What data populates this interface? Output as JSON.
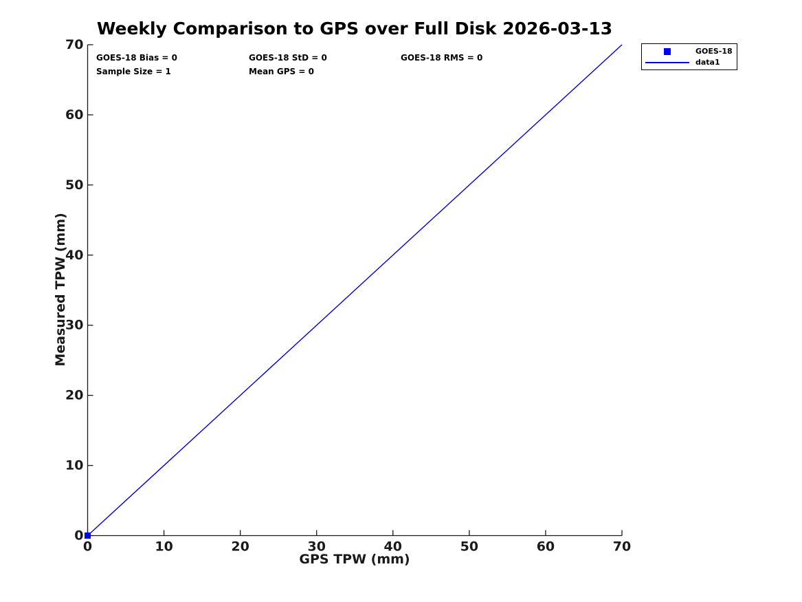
{
  "chart_data": {
    "type": "scatter",
    "title": "Weekly Comparison to GPS over Full Disk 2026-03-13",
    "xlabel": "GPS TPW (mm)",
    "ylabel": "Measured TPW (mm)",
    "xlim": [
      0,
      70
    ],
    "ylim": [
      0,
      70
    ],
    "xticks": [
      0,
      10,
      20,
      30,
      40,
      50,
      60,
      70
    ],
    "yticks": [
      0,
      10,
      20,
      30,
      40,
      50,
      60,
      70
    ],
    "grid": false,
    "axis_color": "#1a1a1a",
    "legend_position": "outside-top-right",
    "stats": {
      "bias": "GOES-18 Bias = 0",
      "std": "GOES-18 StD = 0",
      "rms": "GOES-18 RMS = 0",
      "sample_size": "Sample Size = 1",
      "mean_gps": "Mean GPS = 0"
    },
    "series": [
      {
        "name": "GOES-18",
        "type": "scatter",
        "marker": "square",
        "color": "#0000ff",
        "points": [
          [
            0,
            0
          ]
        ]
      },
      {
        "name": "data1",
        "type": "line",
        "color": "#0000dd",
        "points": [
          [
            0,
            0
          ],
          [
            70,
            70
          ]
        ]
      }
    ]
  }
}
